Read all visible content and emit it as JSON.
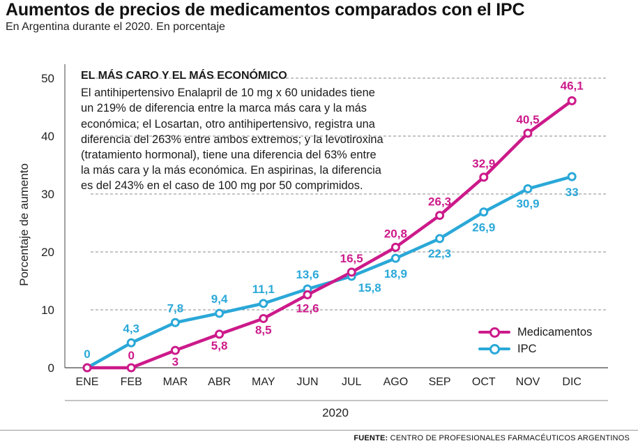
{
  "header": {
    "title": "Aumentos de precios de medicamentos comparados con el IPC",
    "subtitle": "En Argentina durante el 2020. En porcentaje"
  },
  "note": {
    "title": "EL MÁS CARO Y EL MÁS ECONÓMICO",
    "body": "El antihipertensivo Enalapril de 10 mg x 60 unidades tiene un 219% de diferencia entre la marca más cara y la más  económica; el Losartan, otro antihipertensivo, registra una diferencia del 263%  entre ambos extremos; y la levotiroxina (tratamiento hormonal), tiene una diferencia del 63% entre la más cara y la más económica. En aspirinas, la diferencia es del 243% en el  caso de 100 mg por 50 comprimidos."
  },
  "source": {
    "label": "FUENTE:",
    "text": "CENTRO DE PROFESIONALES FARMACÉUTICOS ARGENTINOS"
  },
  "chart_data": {
    "type": "line",
    "xlabel": "2020",
    "ylabel": "Porcentaje de aumento",
    "ylim": [
      0,
      50
    ],
    "yticks": [
      0,
      10,
      20,
      30,
      40,
      50
    ],
    "grid": "horizontal dashed",
    "legend_position": "bottom-right",
    "categories": [
      "ENE",
      "FEB",
      "MAR",
      "ABR",
      "MAY",
      "JUN",
      "JUL",
      "AGO",
      "SEP",
      "OCT",
      "NOV",
      "DIC"
    ],
    "series": [
      {
        "name": "Medicamentos",
        "color": "#cc1a8a",
        "values": [
          0,
          0,
          3,
          5.8,
          8.5,
          12.6,
          16.5,
          20.8,
          26.3,
          32.9,
          40.5,
          46.1
        ],
        "labels": [
          "",
          "0",
          "3",
          "5,8",
          "8,5",
          "12,6",
          "16,5",
          "20,8",
          "26,3",
          "32,9",
          "40,5",
          "46,1"
        ]
      },
      {
        "name": "IPC",
        "color": "#2aa8d8",
        "values": [
          0,
          4.3,
          7.8,
          9.4,
          11.1,
          13.6,
          15.8,
          18.9,
          22.3,
          26.9,
          30.9,
          33
        ],
        "labels": [
          "0",
          "4,3",
          "7,8",
          "9,4",
          "11,1",
          "13,6",
          "15,8",
          "18,9",
          "22,3",
          "26,9",
          "30,9",
          "33"
        ]
      }
    ]
  }
}
